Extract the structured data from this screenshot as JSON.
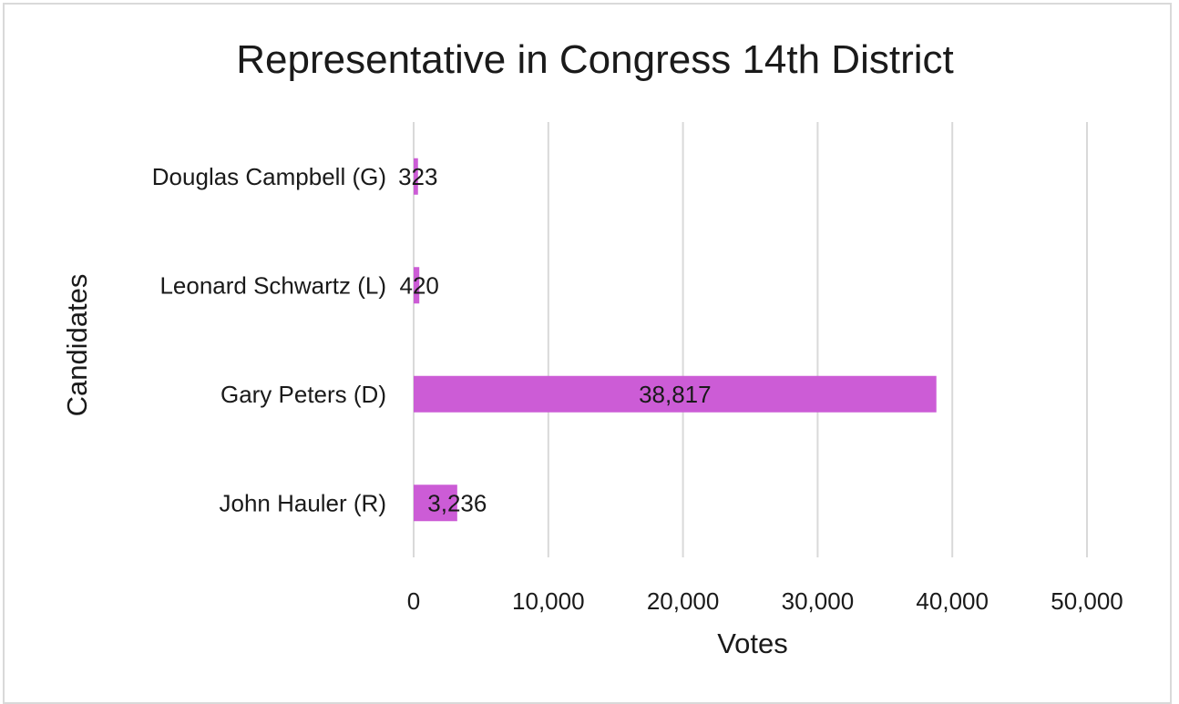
{
  "chart_data": {
    "type": "bar",
    "orientation": "horizontal",
    "title": "Representative in Congress 14th District",
    "xlabel": "Votes",
    "ylabel": "Candidates",
    "categories": [
      "Douglas Campbell (G)",
      "Leonard Schwartz (L)",
      "Gary Peters (D)",
      "John Hauler (R)"
    ],
    "values": [
      323,
      420,
      38817,
      3236
    ],
    "data_labels": [
      "323",
      "420",
      "38,817",
      "3,236"
    ],
    "xlim": [
      0,
      50000
    ],
    "x_ticks": [
      0,
      10000,
      20000,
      30000,
      40000,
      50000
    ],
    "x_tick_labels": [
      "0",
      "10,000",
      "20,000",
      "30,000",
      "40,000",
      "50,000"
    ],
    "grid": "vertical",
    "legend": "none",
    "bar_color": "#cc5cd6",
    "gridline_color": "#d9d9d9",
    "border_color": "#d9d9d9"
  }
}
